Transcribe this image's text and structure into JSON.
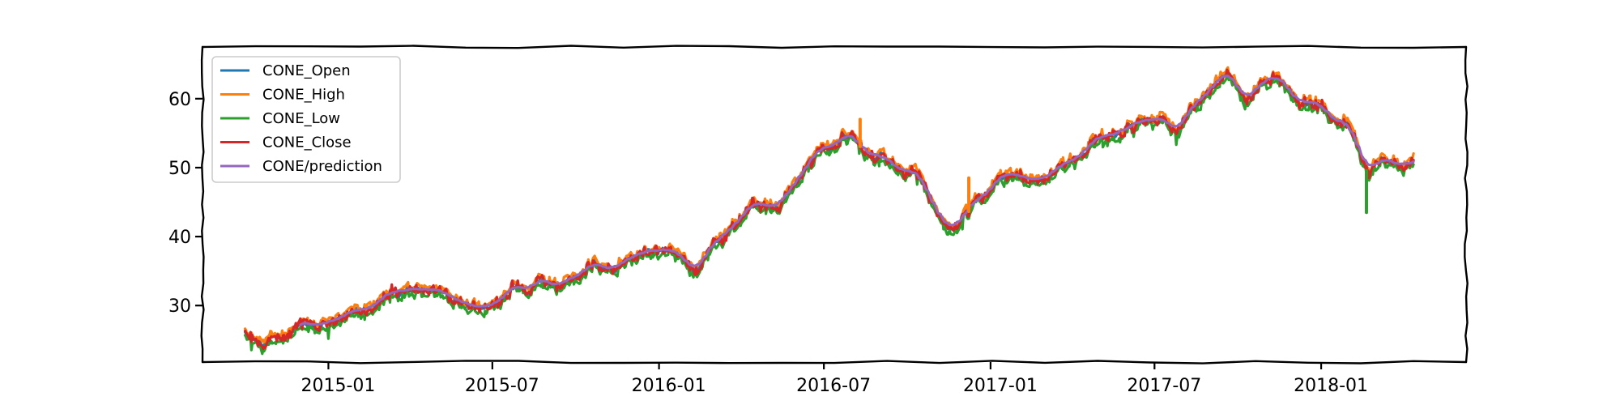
{
  "chart_data": {
    "type": "line",
    "title": "",
    "xlabel": "",
    "ylabel": "",
    "x_start": "2014-10-01",
    "x_end": "2018-04-15",
    "xlim": [
      "2014-08-15",
      "2018-06-10"
    ],
    "ylim": [
      21.8,
      67.5
    ],
    "xticks": [
      "2015-01",
      "2015-07",
      "2016-01",
      "2016-07",
      "2017-01",
      "2017-07",
      "2018-01"
    ],
    "yticks": [
      30,
      40,
      50,
      60
    ],
    "grid": false,
    "legend": {
      "placement": "top-left"
    },
    "series": [
      {
        "name": "CONE_Open",
        "color": "#1f77b4",
        "offset": 0.0,
        "noise": 0.35,
        "dips": false
      },
      {
        "name": "CONE_High",
        "color": "#ff7f0e",
        "offset": 0.45,
        "noise": 0.4,
        "dips": false
      },
      {
        "name": "CONE_Low",
        "color": "#2ca02c",
        "offset": -0.55,
        "noise": 0.45,
        "dips": true
      },
      {
        "name": "CONE_Close",
        "color": "#d62728",
        "offset": 0.0,
        "noise": 0.6,
        "dips": false
      },
      {
        "name": "CONE/prediction",
        "color": "#9467bd",
        "offset": 0.0,
        "noise": 0.0,
        "dips": false,
        "start": "2014-12-01",
        "smooth": 7
      }
    ],
    "trend": [
      [
        "2014-10-01",
        26.5
      ],
      [
        "2014-10-20",
        24.0
      ],
      [
        "2014-11-10",
        25.5
      ],
      [
        "2014-12-01",
        27.2
      ],
      [
        "2014-12-20",
        26.5
      ],
      [
        "2015-01-10",
        27.8
      ],
      [
        "2015-02-01",
        28.5
      ],
      [
        "2015-02-20",
        29.8
      ],
      [
        "2015-03-15",
        32.0
      ],
      [
        "2015-04-10",
        31.8
      ],
      [
        "2015-05-01",
        32.3
      ],
      [
        "2015-05-20",
        31.5
      ],
      [
        "2015-06-15",
        30.3
      ],
      [
        "2015-07-10",
        30.4
      ],
      [
        "2015-07-25",
        33.0
      ],
      [
        "2015-08-10",
        31.5
      ],
      [
        "2015-08-25",
        33.5
      ],
      [
        "2015-09-10",
        32.5
      ],
      [
        "2015-10-01",
        34.5
      ],
      [
        "2015-10-20",
        36.0
      ],
      [
        "2015-11-10",
        35.5
      ],
      [
        "2015-12-01",
        37.0
      ],
      [
        "2016-01-05",
        38.0
      ],
      [
        "2016-01-25",
        36.5
      ],
      [
        "2016-02-10",
        35.0
      ],
      [
        "2016-03-01",
        39.0
      ],
      [
        "2016-03-25",
        41.5
      ],
      [
        "2016-04-15",
        45.0
      ],
      [
        "2016-05-10",
        44.0
      ],
      [
        "2016-06-01",
        48.0
      ],
      [
        "2016-06-20",
        51.5
      ],
      [
        "2016-07-15",
        53.5
      ],
      [
        "2016-08-01",
        55.0
      ],
      [
        "2016-08-15",
        52.0
      ],
      [
        "2016-09-05",
        51.5
      ],
      [
        "2016-09-25",
        49.5
      ],
      [
        "2016-10-15",
        48.5
      ],
      [
        "2016-11-05",
        42.0
      ],
      [
        "2016-11-20",
        40.5
      ],
      [
        "2016-12-10",
        44.0
      ],
      [
        "2016-12-25",
        45.5
      ],
      [
        "2017-01-15",
        49.0
      ],
      [
        "2017-02-01",
        48.5
      ],
      [
        "2017-02-20",
        47.5
      ],
      [
        "2017-03-10",
        49.5
      ],
      [
        "2017-04-01",
        51.0
      ],
      [
        "2017-04-25",
        53.5
      ],
      [
        "2017-05-20",
        54.5
      ],
      [
        "2017-06-15",
        56.5
      ],
      [
        "2017-07-10",
        57.5
      ],
      [
        "2017-07-25",
        55.5
      ],
      [
        "2017-08-15",
        59.0
      ],
      [
        "2017-09-01",
        61.5
      ],
      [
        "2017-09-20",
        64.0
      ],
      [
        "2017-10-10",
        59.0
      ],
      [
        "2017-10-25",
        61.0
      ],
      [
        "2017-11-15",
        63.0
      ],
      [
        "2017-12-05",
        60.5
      ],
      [
        "2017-12-25",
        59.5
      ],
      [
        "2018-01-15",
        57.5
      ],
      [
        "2018-02-01",
        56.0
      ],
      [
        "2018-02-15",
        51.0
      ],
      [
        "2018-02-22",
        49.0
      ],
      [
        "2018-03-10",
        51.5
      ],
      [
        "2018-03-25",
        50.5
      ],
      [
        "2018-04-15",
        50.0
      ]
    ],
    "spikes": [
      {
        "date": "2016-08-10",
        "series": "CONE_High",
        "value": 57.0
      },
      {
        "date": "2016-12-08",
        "series": "CONE_High",
        "value": 48.5
      },
      {
        "date": "2018-02-20",
        "series": "CONE_Low",
        "value": 43.5
      }
    ]
  }
}
